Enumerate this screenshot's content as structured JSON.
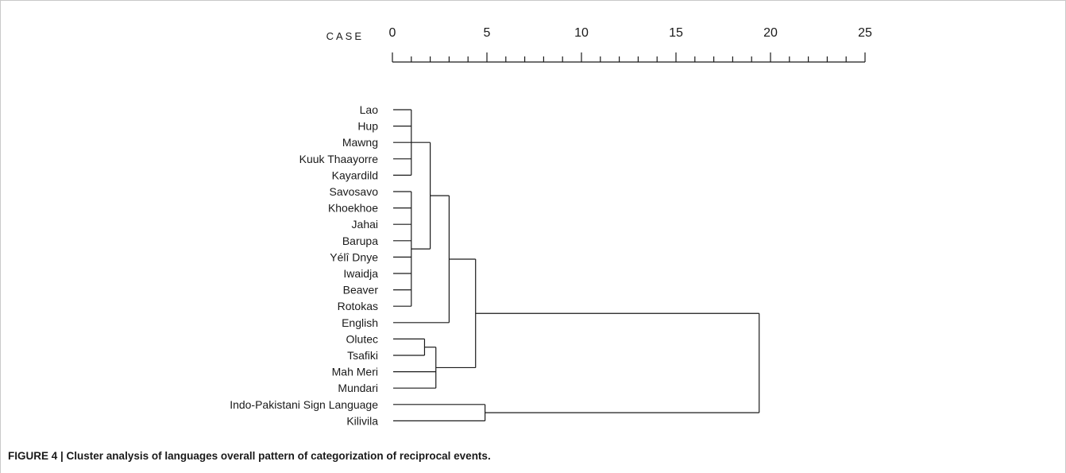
{
  "figure": {
    "caption": "FIGURE 4 | Cluster analysis of languages overall pattern of categorization of reciprocal events."
  },
  "chart_data": {
    "type": "dendrogram",
    "axis": {
      "label": "CASE",
      "range": [
        0,
        25
      ],
      "tick_labels": [
        "0",
        "5",
        "10",
        "15",
        "20",
        "25"
      ],
      "major_step": 5,
      "minor_step": 1
    },
    "leaves": [
      "Lao",
      "Hup",
      "Mawng",
      "Kuuk Thaayorre",
      "Kayardild",
      "Savosavo",
      "Khoekhoe",
      "Jahai",
      "Barupa",
      "Yélî Dnye",
      "Iwaidja",
      "Beaver",
      "Rotokas",
      "English",
      "Olutec",
      "Tsafiki",
      "Mah Meri",
      "Mundari",
      "Indo-Pakistani Sign Language",
      "Kilivila"
    ],
    "merges": [
      {
        "members": [
          "Lao",
          "Hup",
          "Mawng",
          "Kuuk Thaayorre",
          "Kayardild"
        ],
        "height": 1.0
      },
      {
        "members": [
          "Savosavo",
          "Khoekhoe",
          "Jahai",
          "Barupa",
          "Yélî Dnye",
          "Iwaidja",
          "Beaver",
          "Rotokas"
        ],
        "height": 1.0
      },
      {
        "members": [
          "Lao..Kayardild",
          "Savosavo..Rotokas"
        ],
        "height": 2.0
      },
      {
        "members": [
          "Lao..Rotokas",
          "English"
        ],
        "height": 3.0
      },
      {
        "members": [
          "Olutec",
          "Tsafiki"
        ],
        "height": 1.7
      },
      {
        "members": [
          "Olutec+Tsafiki",
          "Mah Meri",
          "Mundari"
        ],
        "height": 2.3
      },
      {
        "members": [
          "Lao..English",
          "Olutec..Mundari"
        ],
        "height": 4.4
      },
      {
        "members": [
          "Indo-Pakistani Sign Language",
          "Kilivila"
        ],
        "height": 4.9
      },
      {
        "members": [
          "Lao..Mundari",
          "Indo-Pakistani Sign Language+Kilivila"
        ],
        "height": 19.4
      }
    ]
  }
}
